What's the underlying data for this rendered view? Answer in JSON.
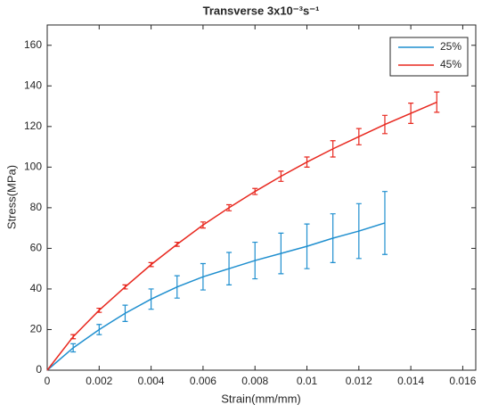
{
  "chart_data": {
    "type": "errorbar-line",
    "title": "Transverse 3x10⁻³s⁻¹",
    "x_label": "Strain(mm/mm)",
    "y_label": "Stress(MPa)",
    "xlim": [
      0,
      0.0165
    ],
    "xticks": [
      0,
      0.002,
      0.004,
      0.006,
      0.008,
      0.01,
      0.012,
      0.014,
      0.016
    ],
    "ylim": [
      0,
      170
    ],
    "yticks": [
      0,
      20,
      40,
      60,
      80,
      100,
      120,
      140,
      160
    ],
    "grid": false,
    "legend": "northeast",
    "series": [
      {
        "name": "25%",
        "color": "#1f8fcf",
        "x": [
          0,
          0.001,
          0.002,
          0.003,
          0.004,
          0.005,
          0.006,
          0.007,
          0.008,
          0.009,
          0.01,
          0.011,
          0.012,
          0.013
        ],
        "values": [
          0,
          11,
          20,
          28,
          35,
          41,
          46,
          50,
          54,
          57.5,
          61,
          65,
          68.5,
          72.5
        ],
        "errors": [
          null,
          2,
          2.5,
          4,
          5,
          5.5,
          6.5,
          8,
          9,
          10,
          11,
          12,
          13.5,
          15.5
        ]
      },
      {
        "name": "45%",
        "color": "#e8281f",
        "x": [
          0,
          0.001,
          0.002,
          0.003,
          0.004,
          0.005,
          0.006,
          0.007,
          0.008,
          0.009,
          0.01,
          0.011,
          0.012,
          0.013,
          0.014,
          0.015
        ],
        "values": [
          0,
          16.5,
          29.5,
          41,
          52,
          62,
          71.5,
          80,
          88,
          95.5,
          102.5,
          109,
          115,
          121,
          126.5,
          132
        ],
        "errors": [
          null,
          1,
          1,
          1,
          1,
          1,
          1.5,
          1.5,
          1.5,
          2.5,
          2.5,
          4,
          4,
          4.5,
          5,
          5
        ]
      }
    ]
  }
}
